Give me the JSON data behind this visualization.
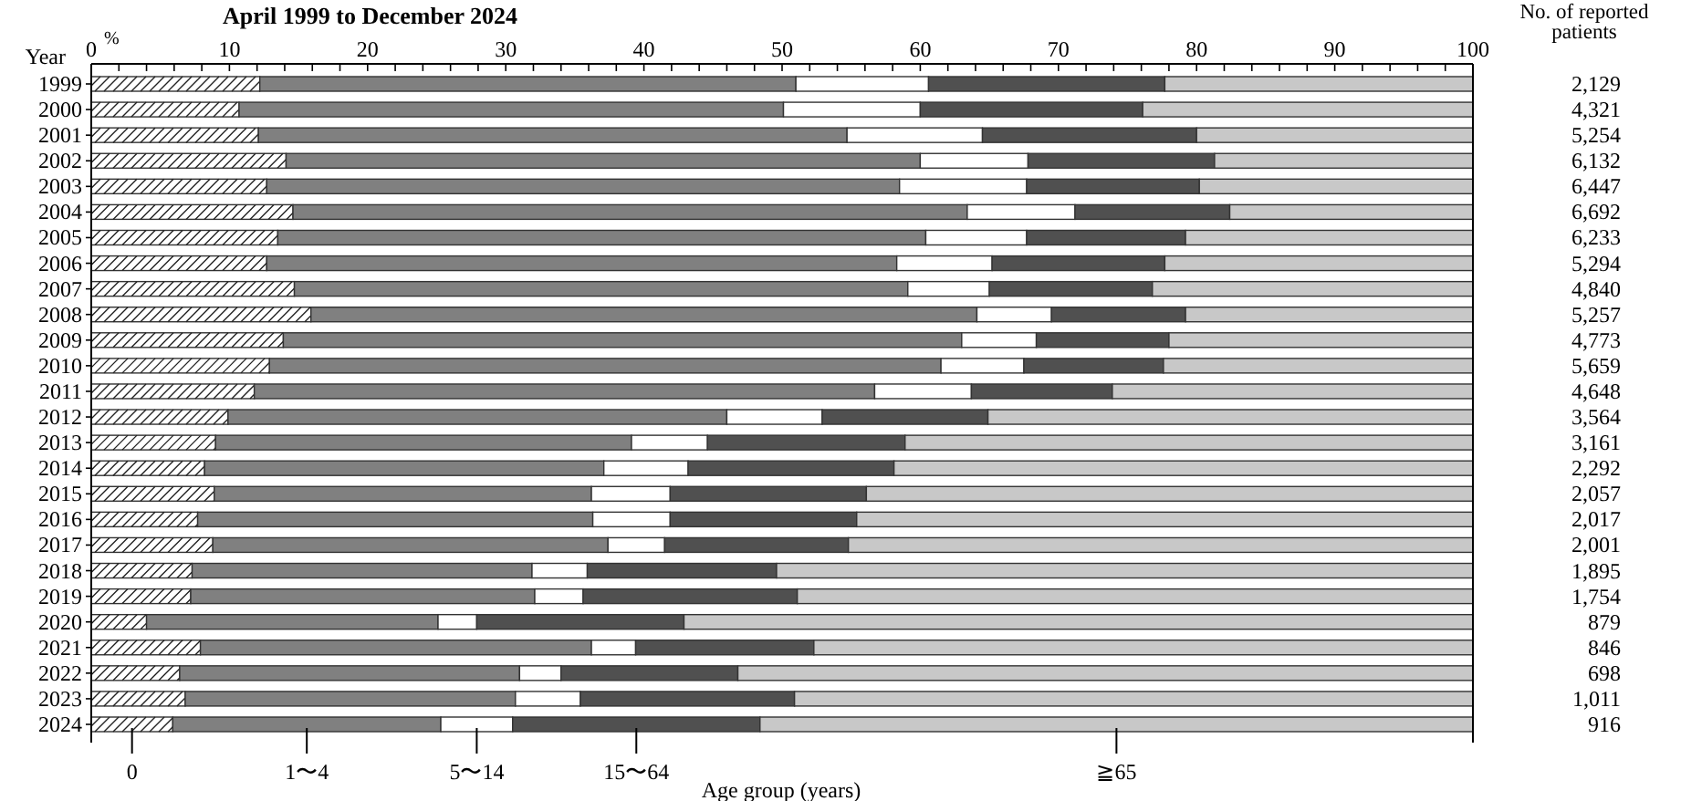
{
  "chart_data": {
    "type": "bar",
    "orientation": "horizontal",
    "stacked": true,
    "title": "April 1999 to December 2024",
    "xlabel": "%",
    "ylabel": "Year",
    "legend_title": "Age group (years)",
    "legend": "bottom",
    "categories": [
      "1999",
      "2000",
      "2001",
      "2002",
      "2003",
      "2004",
      "2005",
      "2006",
      "2007",
      "2008",
      "2009",
      "2010",
      "2011",
      "2012",
      "2013",
      "2014",
      "2015",
      "2016",
      "2017",
      "2018",
      "2019",
      "2020",
      "2021",
      "2022",
      "2023",
      "2024"
    ],
    "series": [
      {
        "name": "0",
        "color": "#ffffff",
        "values": [
          12.2,
          10.7,
          12.1,
          14.1,
          12.7,
          14.6,
          13.5,
          12.7,
          14.7,
          15.9,
          13.9,
          12.9,
          11.8,
          9.9,
          9.0,
          8.2,
          8.9,
          7.7,
          8.8,
          7.3,
          7.2,
          4.0,
          7.9,
          6.4,
          6.8,
          5.9
        ]
      },
      {
        "name": "1〜4",
        "color": "#808080",
        "values": [
          38.8,
          39.4,
          42.6,
          45.9,
          45.8,
          48.8,
          46.9,
          45.6,
          44.4,
          48.2,
          49.1,
          48.6,
          44.9,
          36.1,
          30.1,
          28.9,
          27.3,
          28.6,
          28.6,
          24.6,
          24.9,
          21.1,
          28.3,
          24.6,
          23.9,
          19.4
        ]
      },
      {
        "name": "5〜14",
        "color": "#ffffff",
        "values": [
          9.6,
          9.9,
          9.8,
          7.8,
          9.2,
          7.8,
          7.3,
          6.9,
          5.9,
          5.4,
          5.4,
          6.0,
          7.0,
          6.9,
          5.5,
          6.1,
          5.7,
          5.6,
          4.1,
          4.0,
          3.5,
          2.8,
          3.2,
          3.0,
          4.7,
          5.2
        ]
      },
      {
        "name": "15〜64",
        "color": "#505050",
        "values": [
          17.1,
          16.1,
          15.5,
          13.5,
          12.5,
          11.2,
          11.5,
          12.5,
          11.8,
          9.7,
          9.6,
          10.1,
          10.2,
          12.0,
          14.3,
          14.9,
          14.2,
          13.5,
          13.3,
          13.7,
          15.5,
          15.0,
          12.9,
          12.8,
          15.5,
          17.9
        ]
      },
      {
        "name": "≧65",
        "color": "#c8c8c8",
        "values": [
          22.3,
          23.9,
          20.0,
          18.7,
          19.8,
          17.6,
          20.8,
          22.3,
          23.2,
          20.8,
          22.0,
          22.4,
          26.1,
          35.1,
          41.1,
          41.9,
          43.9,
          44.6,
          45.2,
          50.4,
          48.9,
          57.1,
          47.7,
          53.2,
          49.1,
          51.6
        ]
      }
    ],
    "xlim": [
      0,
      100
    ],
    "xticks": [
      0,
      {
        "value": 2,
        "label": null
      },
      {
        "value": 4,
        "label": null
      },
      {
        "value": 6,
        "label": null
      },
      {
        "value": 8,
        "label": null
      },
      10,
      {
        "value": 12,
        "label": null
      },
      {
        "value": 14,
        "label": null
      },
      {
        "value": 16,
        "label": null
      },
      {
        "value": 18,
        "label": null
      },
      20,
      {
        "value": 22,
        "label": null
      },
      {
        "value": 24,
        "label": null
      },
      {
        "value": 26,
        "label": null
      },
      {
        "value": 28,
        "label": null
      },
      30,
      {
        "value": 32,
        "label": null
      },
      {
        "value": 34,
        "label": null
      },
      {
        "value": 36,
        "label": null
      },
      {
        "value": 38,
        "label": null
      },
      40,
      {
        "value": 42,
        "label": null
      },
      {
        "value": 44,
        "label": null
      },
      {
        "value": 46,
        "label": null
      },
      {
        "value": 48,
        "label": null
      },
      50,
      {
        "value": 52,
        "label": null
      },
      {
        "value": 54,
        "label": null
      },
      {
        "value": 56,
        "label": null
      },
      {
        "value": 58,
        "label": null
      },
      60,
      {
        "value": 62,
        "label": null
      },
      {
        "value": 64,
        "label": null
      },
      {
        "value": 66,
        "label": null
      },
      {
        "value": 68,
        "label": null
      },
      70,
      {
        "value": 72,
        "label": null
      },
      {
        "value": 74,
        "label": null
      },
      {
        "value": 76,
        "label": null
      },
      {
        "value": 78,
        "label": null
      },
      80,
      {
        "value": 82,
        "label": null
      },
      {
        "value": 84,
        "label": null
      },
      {
        "value": 86,
        "label": null
      },
      {
        "value": 88,
        "label": null
      },
      90,
      {
        "value": 92,
        "label": null
      },
      {
        "value": 94,
        "label": null
      },
      {
        "value": 96,
        "label": null
      },
      {
        "value": 98,
        "label": null
      },
      100
    ],
    "grid": false,
    "annotations": [
      "No. of reported\npatients",
      "2,129",
      "4,321",
      "5,254",
      "6,132",
      "6,447",
      "6,692",
      "6,233",
      "5,294",
      "4,840",
      "5,257",
      "4,773",
      "5,659",
      "4,648",
      "3,564",
      "3,161",
      "2,292",
      "2,057",
      "2,017",
      "2,001",
      "1,895",
      "1,754",
      "879",
      "846",
      "698",
      "1,011",
      "916"
    ]
  }
}
